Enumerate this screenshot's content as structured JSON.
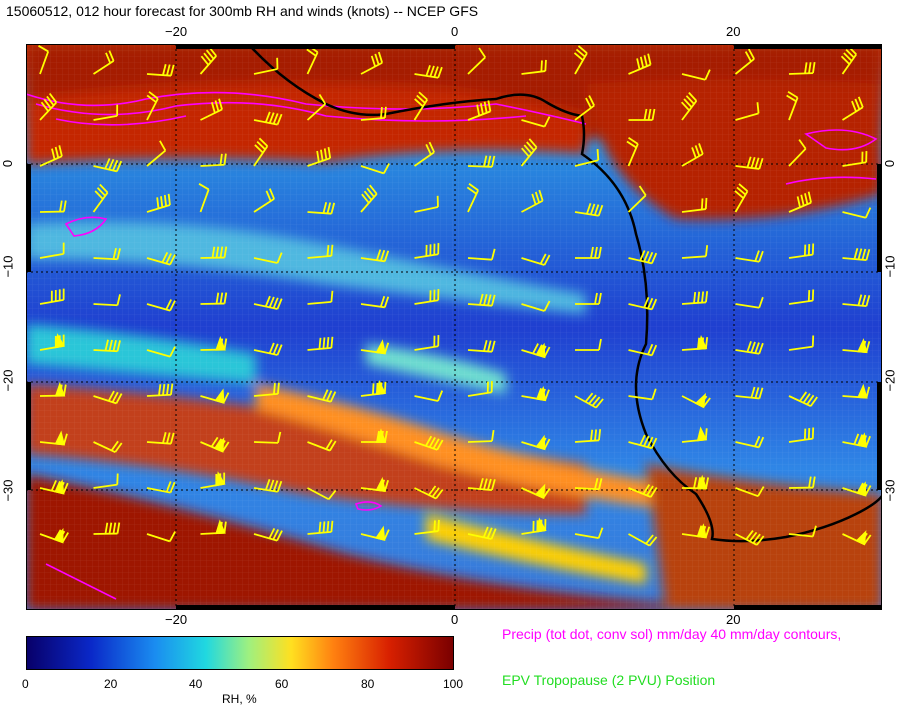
{
  "title": "15060512, 012 hour forecast for 300mb RH and winds (knots) -- NCEP GFS",
  "axes": {
    "top_ticks": [
      "−20",
      "0",
      "20"
    ],
    "bottom_ticks": [
      "−20",
      "0",
      "20"
    ],
    "left_ticks": [
      "0",
      "−10",
      "−20",
      "−30"
    ],
    "right_ticks": [
      "0",
      "−10",
      "−20",
      "−30"
    ]
  },
  "colorbar": {
    "ticks": [
      "0",
      "20",
      "40",
      "60",
      "80",
      "100"
    ],
    "label": "RH, %",
    "range": [
      0,
      100
    ]
  },
  "legend": {
    "precip": "Precip (tot dot, conv sol) mm/day 40 mm/day contours,",
    "epv": "EPV Tropopause (2 PVU) Position"
  },
  "colors": {
    "precip": "#ff00ff",
    "epv": "#22dd22",
    "wind_barbs": "#ffff00",
    "coastline": "#000000"
  }
}
